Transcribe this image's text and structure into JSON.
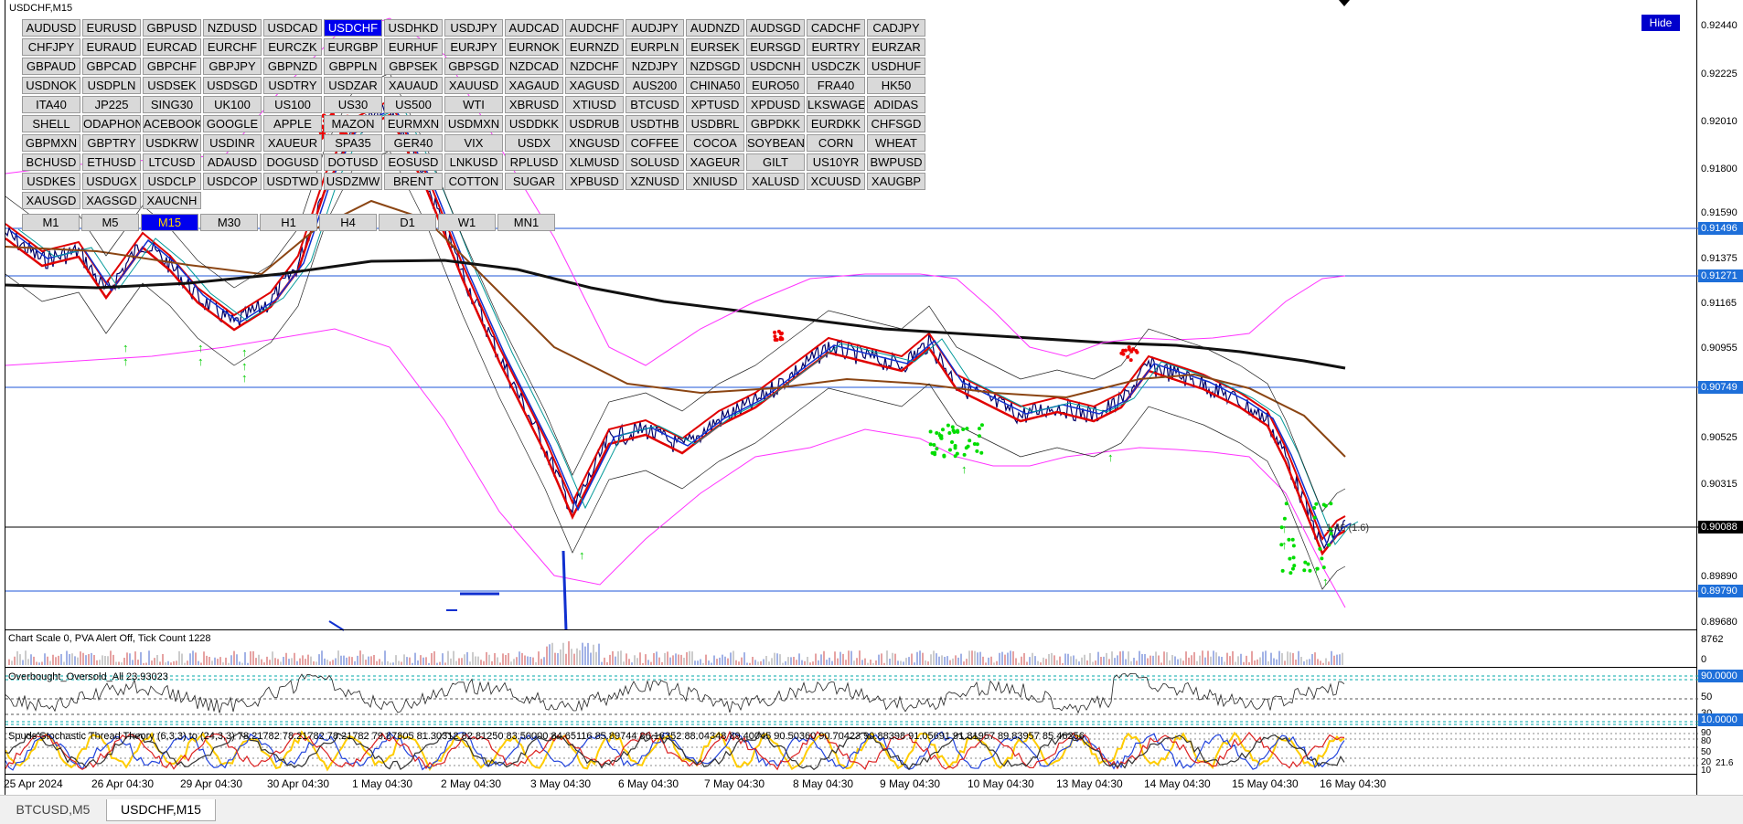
{
  "chart_title": "USDCHF,M15",
  "hide_label": "Hide",
  "symbols": [
    [
      "AUDUSD",
      "EURUSD",
      "GBPUSD",
      "NZDUSD",
      "USDCAD",
      "USDCHF",
      "USDHKD",
      "USDJPY",
      "AUDCAD",
      "AUDCHF",
      "AUDJPY",
      "AUDNZD",
      "AUDSGD",
      "CADCHF",
      "CADJPY"
    ],
    [
      "CHFJPY",
      "EURAUD",
      "EURCAD",
      "EURCHF",
      "EURCZK",
      "EURGBP",
      "EURHUF",
      "EURJPY",
      "EURNOK",
      "EURNZD",
      "EURPLN",
      "EURSEK",
      "EURSGD",
      "EURTRY",
      "EURZAR"
    ],
    [
      "GBPAUD",
      "GBPCAD",
      "GBPCHF",
      "GBPJPY",
      "GBPNZD",
      "GBPPLN",
      "GBPSEK",
      "GBPSGD",
      "NZDCAD",
      "NZDCHF",
      "NZDJPY",
      "NZDSGD",
      "USDCNH",
      "USDCZK",
      "USDHUF"
    ],
    [
      "USDNOK",
      "USDPLN",
      "USDSEK",
      "USDSGD",
      "USDTRY",
      "USDZAR",
      "XAUAUD",
      "XAUUSD",
      "XAGAUD",
      "XAGUSD",
      "AUS200",
      "CHINA50",
      "EURO50",
      "FRA40",
      "HK50"
    ],
    [
      "ITA40",
      "JP225",
      "SING30",
      "UK100",
      "US100",
      "US30",
      "US500",
      "WTI",
      "XBRUSD",
      "XTIUSD",
      "BTCUSD",
      "XPTUSD",
      "XPDUSD",
      "LKSWAGE",
      "ADIDAS"
    ],
    [
      "SHELL",
      "ODAPHON",
      "ACEBOOK",
      "GOOGLE",
      "APPLE",
      "MAZON",
      "EURMXN",
      "USDMXN",
      "USDDKK",
      "USDRUB",
      "USDTHB",
      "USDBRL",
      "GBPDKK",
      "EURDKK",
      "CHFSGD"
    ],
    [
      "GBPMXN",
      "GBPTRY",
      "USDKRW",
      "USDINR",
      "XAUEUR",
      "SPA35",
      "GER40",
      "VIX",
      "USDX",
      "XNGUSD",
      "COFFEE",
      "COCOA",
      "SOYBEANS",
      "CORN",
      "WHEAT"
    ],
    [
      "BCHUSD",
      "ETHUSD",
      "LTCUSD",
      "ADAUSD",
      "DOGUSD",
      "DOTUSD",
      "EOSUSD",
      "LNKUSD",
      "RPLUSD",
      "XLMUSD",
      "SOLUSD",
      "XAGEUR",
      "GILT",
      "US10YR",
      "BWPUSD"
    ],
    [
      "USDKES",
      "USDUGX",
      "USDCLP",
      "USDCOP",
      "USDTWD",
      "USDZMW",
      "BRENT",
      "COTTON",
      "SUGAR",
      "XPBUSD",
      "XZNUSD",
      "XNIUSD",
      "XALUSD",
      "XCUUSD",
      "XAUGBP"
    ],
    [
      "XAUSGD",
      "XAGSGD",
      "XAUCNH"
    ]
  ],
  "active_symbol": "USDCHF",
  "timeframes": [
    "M1",
    "M5",
    "M15",
    "M30",
    "H1",
    "H4",
    "D1",
    "W1",
    "MN1"
  ],
  "active_timeframe": "M15",
  "price_axis": [
    "0.92440",
    "0.92225",
    "0.92010",
    "0.91800",
    "0.91590",
    "0.91375",
    "0.91165",
    "0.90955",
    "0.90525",
    "0.90315",
    "0.89890",
    "0.89680"
  ],
  "price_tags": {
    "line1": "0.91496",
    "line2": "0.91271",
    "line3": "0.90749",
    "current": "0.90088",
    "line4": "0.89790"
  },
  "trade_label": "1.46 (1.6)",
  "volume_pane": {
    "info": "Chart Scale  0,   PVA Alert Off,   Tick Count  1228",
    "max": "8762",
    "min": "0"
  },
  "oscillator_pane": {
    "info": "Overbought_Oversold_All 23.93023",
    "levels": [
      "90.0000",
      "50",
      "30",
      "10.0000"
    ]
  },
  "stochastic_pane": {
    "info": "Spuds Stochastic Thread Theory (6,3,3) to (24,3,3) 78.21782 78.21782 78.21782 79.87805 81.30312 82.81250 83.50000 84.65116 85.89744 86.16352 88.04348 89.40045 90.50360 90.70423 90.88398 91.05691 91.81957 89.83957 85.46256",
    "levels": [
      "90",
      "80",
      "50",
      "20",
      "21.6",
      "10"
    ]
  },
  "time_axis": [
    "25 Apr 2024",
    "26 Apr 04:30",
    "29 Apr 04:30",
    "30 Apr 04:30",
    "1 May 04:30",
    "2 May 04:30",
    "3 May 04:30",
    "6 May 04:30",
    "7 May 04:30",
    "8 May 04:30",
    "9 May 04:30",
    "10 May 04:30",
    "13 May 04:30",
    "14 May 04:30",
    "15 May 04:30",
    "16 May 04:30"
  ],
  "tabs": [
    {
      "label": "BTCUSD,M5",
      "active": false
    },
    {
      "label": "USDCHF,M15",
      "active": true
    }
  ]
}
